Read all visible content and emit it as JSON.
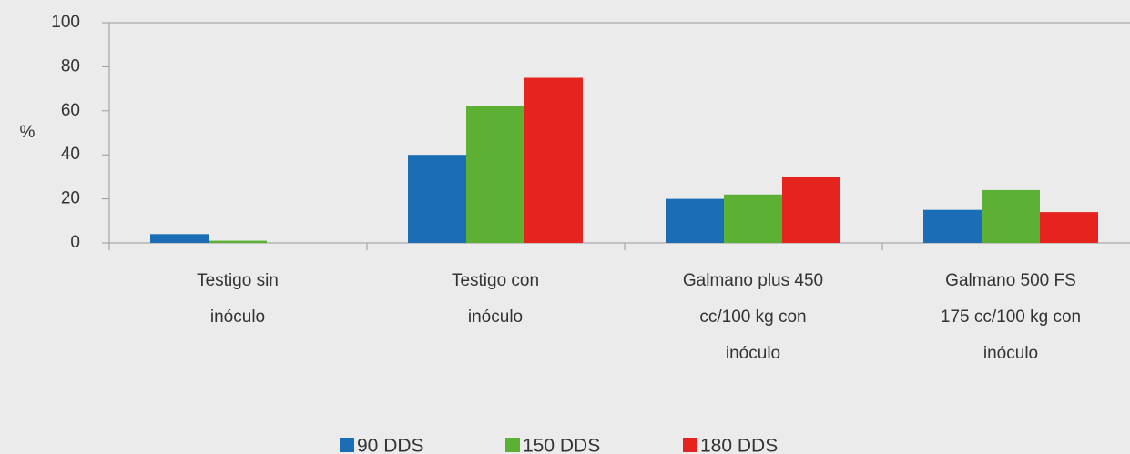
{
  "chart_data": {
    "type": "bar",
    "ylabel": "%",
    "categories": [
      [
        "Testigo sin",
        "inóculo"
      ],
      [
        "Testigo con",
        "inóculo"
      ],
      [
        "Galmano plus 450",
        "cc/100 kg con",
        "inóculo"
      ],
      [
        "Galmano 500 FS",
        "175 cc/100 kg con",
        "inóculo"
      ]
    ],
    "series": [
      {
        "name": "90 DDS",
        "color": "#1b6db6",
        "values": [
          4,
          40,
          20,
          15
        ]
      },
      {
        "name": "150 DDS",
        "color": "#5cb034",
        "values": [
          1,
          62,
          22,
          24
        ]
      },
      {
        "name": "180 DDS",
        "color": "#e5231f",
        "values": [
          0,
          75,
          30,
          14
        ]
      }
    ],
    "ylim": [
      0,
      100
    ],
    "yticks": [
      0,
      20,
      40,
      60,
      80,
      100
    ],
    "legend": "bottom"
  }
}
